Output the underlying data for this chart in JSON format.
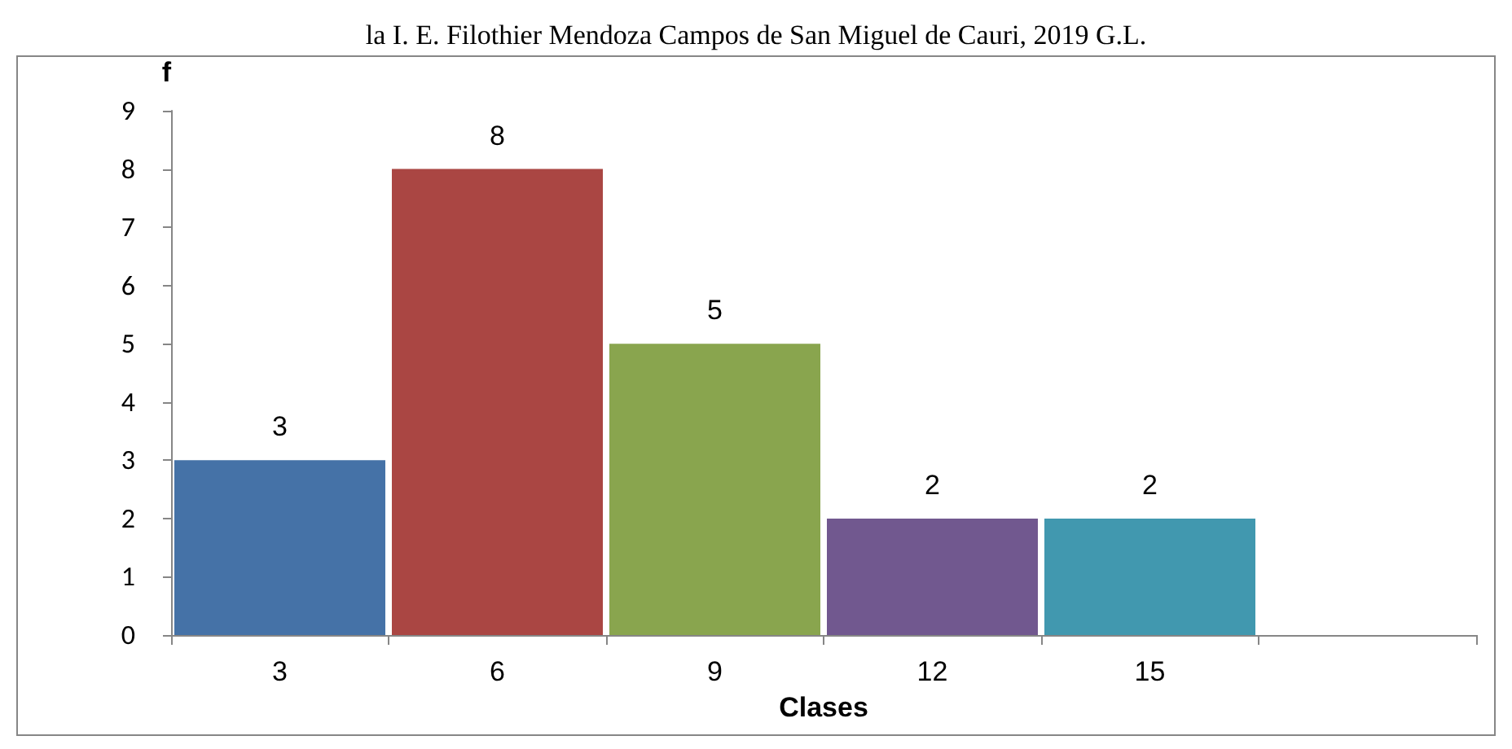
{
  "chart_data": {
    "type": "bar",
    "title": "la I. E. Filothier Mendoza Campos de San Miguel de Cauri, 2019 G.L.",
    "xlabel": "Clases",
    "ylabel": "f",
    "categories": [
      "3",
      "6",
      "9",
      "12",
      "15",
      null
    ],
    "values": [
      3,
      8,
      5,
      2,
      2,
      null
    ],
    "colors": [
      "#4572a7",
      "#aa4643",
      "#89a54e",
      "#71588f",
      "#4198af",
      "#4572a7"
    ],
    "ylim": [
      0,
      9
    ],
    "yticks": [
      0,
      1,
      2,
      3,
      4,
      5,
      6,
      7,
      8,
      9
    ],
    "data_labels": true,
    "grid": false
  }
}
